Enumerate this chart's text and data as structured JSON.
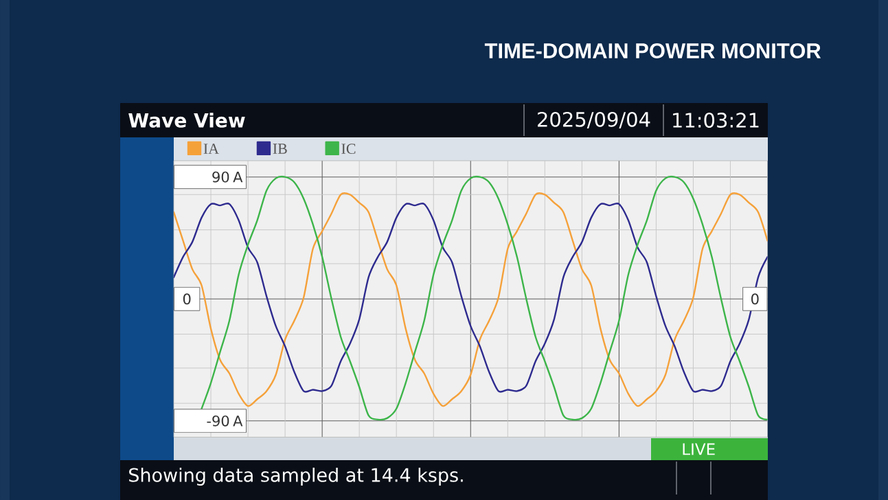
{
  "chart_data": {
    "type": "line",
    "title": "Wave View",
    "annotations": [
      "2025/09/04",
      "11:03:21",
      "LIVE",
      "Showing data sampled at 14.4 ksps.",
      "TIME-DOMAIN POWER MONITOR",
      {
        "text": "0",
        "y": 0
      }
    ],
    "categories": [
      null,
      null,
      null,
      null,
      null,
      null,
      null,
      null,
      null,
      null,
      null,
      null,
      null,
      null,
      null,
      null,
      null,
      null,
      null,
      null,
      null,
      null,
      null,
      null,
      null,
      null,
      null,
      null,
      null,
      null,
      null,
      null,
      null,
      null,
      null,
      null,
      null,
      null,
      null,
      null,
      null,
      null,
      null,
      null,
      null,
      null,
      null,
      null,
      null,
      null,
      null,
      null,
      null,
      null,
      null,
      null,
      null,
      null,
      null,
      null,
      null,
      null,
      null,
      null,
      null
    ],
    "series": [
      {
        "name": "IA",
        "color": "#f5a13a",
        "values": [
          64,
          43,
          22,
          10,
          -22,
          -45,
          -55,
          -70,
          -79,
          -74,
          -68,
          -56,
          -30,
          -16,
          1,
          37,
          50,
          63,
          77,
          77,
          71,
          64,
          43,
          22,
          10,
          -22,
          -45,
          -55,
          -70,
          -79,
          -74,
          -68,
          -56,
          -30,
          -16,
          1,
          37,
          50,
          63,
          77,
          77,
          71,
          64,
          43,
          22,
          10,
          -22,
          -45,
          -55,
          -70,
          -79,
          -74,
          -68,
          -56,
          -30,
          -16,
          1,
          37,
          50,
          63,
          77,
          77,
          71,
          64,
          43
        ]
      },
      {
        "name": "IB",
        "color": "#2e2b8f",
        "values": [
          16,
          31,
          42,
          60,
          70,
          69,
          70,
          58,
          38,
          27,
          2,
          -20,
          -35,
          -54,
          -68,
          -67,
          -68,
          -64,
          -46,
          -33,
          -15,
          16,
          31,
          42,
          60,
          70,
          69,
          70,
          58,
          38,
          27,
          2,
          -20,
          -35,
          -54,
          -68,
          -67,
          -68,
          -64,
          -46,
          -33,
          -15,
          16,
          31,
          42,
          60,
          70,
          69,
          70,
          58,
          38,
          27,
          2,
          -20,
          -35,
          -54,
          -68,
          -67,
          -68,
          -64,
          -46,
          -33,
          -15,
          16,
          31
        ]
      },
      {
        "name": "IC",
        "color": "#3db54a",
        "values": [
          null,
          null,
          null,
          -81,
          -62,
          -39,
          -16,
          18,
          40,
          58,
          80,
          89,
          90,
          86,
          74,
          55,
          31,
          0,
          -28,
          -46,
          -65,
          -86,
          -89,
          -88,
          -81,
          -62,
          -39,
          -16,
          18,
          40,
          58,
          80,
          89,
          90,
          86,
          74,
          55,
          31,
          0,
          -28,
          -46,
          -65,
          -86,
          -89,
          -88,
          -81,
          -62,
          -39,
          -16,
          18,
          40,
          58,
          80,
          89,
          90,
          86,
          74,
          55,
          31,
          0,
          -28,
          -46,
          -65,
          -86,
          -89
        ]
      }
    ],
    "ylim": [
      -102,
      102
    ],
    "yticks": [
      {
        "value": 90,
        "label": "90 A"
      },
      {
        "value": 77,
        "label": null
      },
      {
        "value": 51,
        "label": null
      },
      {
        "value": 26,
        "label": null
      },
      {
        "value": -26,
        "label": null
      },
      {
        "value": -51,
        "label": null
      },
      {
        "value": -77,
        "label": null
      },
      {
        "value": -90,
        "label": "-90 A"
      }
    ],
    "ref_lines": [
      {
        "axis": "y",
        "value": 0,
        "label": "0"
      }
    ],
    "grid": true,
    "legend": "top left"
  }
}
